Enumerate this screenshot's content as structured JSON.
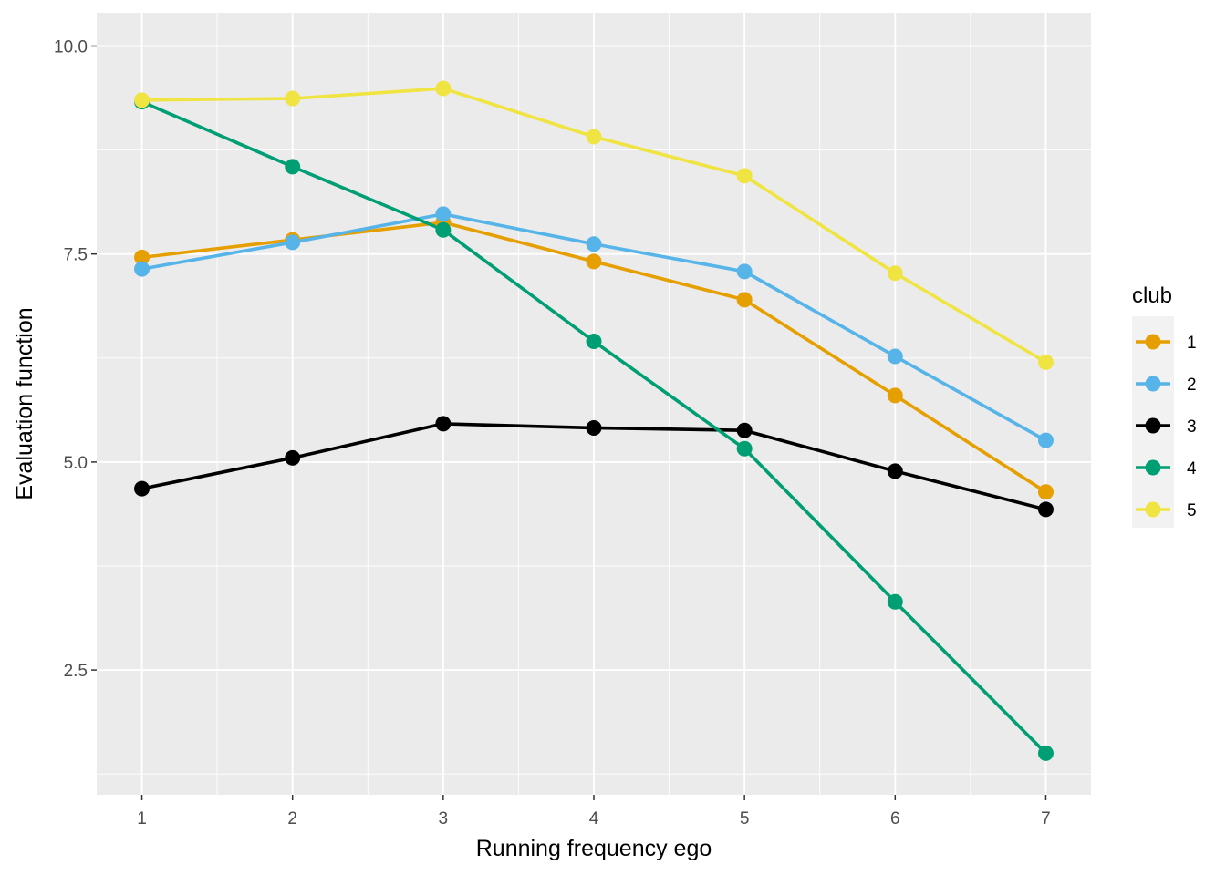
{
  "chart_data": {
    "type": "line",
    "xlabel": "Running frequency ego",
    "ylabel": "Evaluation function",
    "x": [
      1,
      2,
      3,
      4,
      5,
      6,
      7
    ],
    "xlim": [
      0.7,
      7.3
    ],
    "ylim": [
      1.0,
      10.4
    ],
    "yticks": [
      2.5,
      5.0,
      7.5,
      10.0
    ],
    "ytick_labels": [
      "2.5",
      "5.0",
      "7.5",
      "10.0"
    ],
    "xtick_labels": [
      "1",
      "2",
      "3",
      "4",
      "5",
      "6",
      "7"
    ],
    "grid": true,
    "legend": {
      "title": "club",
      "position": "right"
    },
    "series": [
      {
        "name": "1",
        "color": "#E69F00",
        "values": [
          7.46,
          7.67,
          7.88,
          7.41,
          6.95,
          5.8,
          4.64
        ]
      },
      {
        "name": "2",
        "color": "#56B4E9",
        "values": [
          7.32,
          7.64,
          7.98,
          7.62,
          7.29,
          6.27,
          5.26
        ]
      },
      {
        "name": "3",
        "color": "#000000",
        "values": [
          4.68,
          5.05,
          5.46,
          5.41,
          5.38,
          4.89,
          4.43
        ]
      },
      {
        "name": "4",
        "color": "#009E73",
        "values": [
          9.33,
          8.55,
          7.79,
          6.45,
          5.16,
          3.32,
          1.5
        ]
      },
      {
        "name": "5",
        "color": "#F0E442",
        "values": [
          9.35,
          9.37,
          9.49,
          8.91,
          8.44,
          7.27,
          6.2
        ]
      }
    ]
  }
}
